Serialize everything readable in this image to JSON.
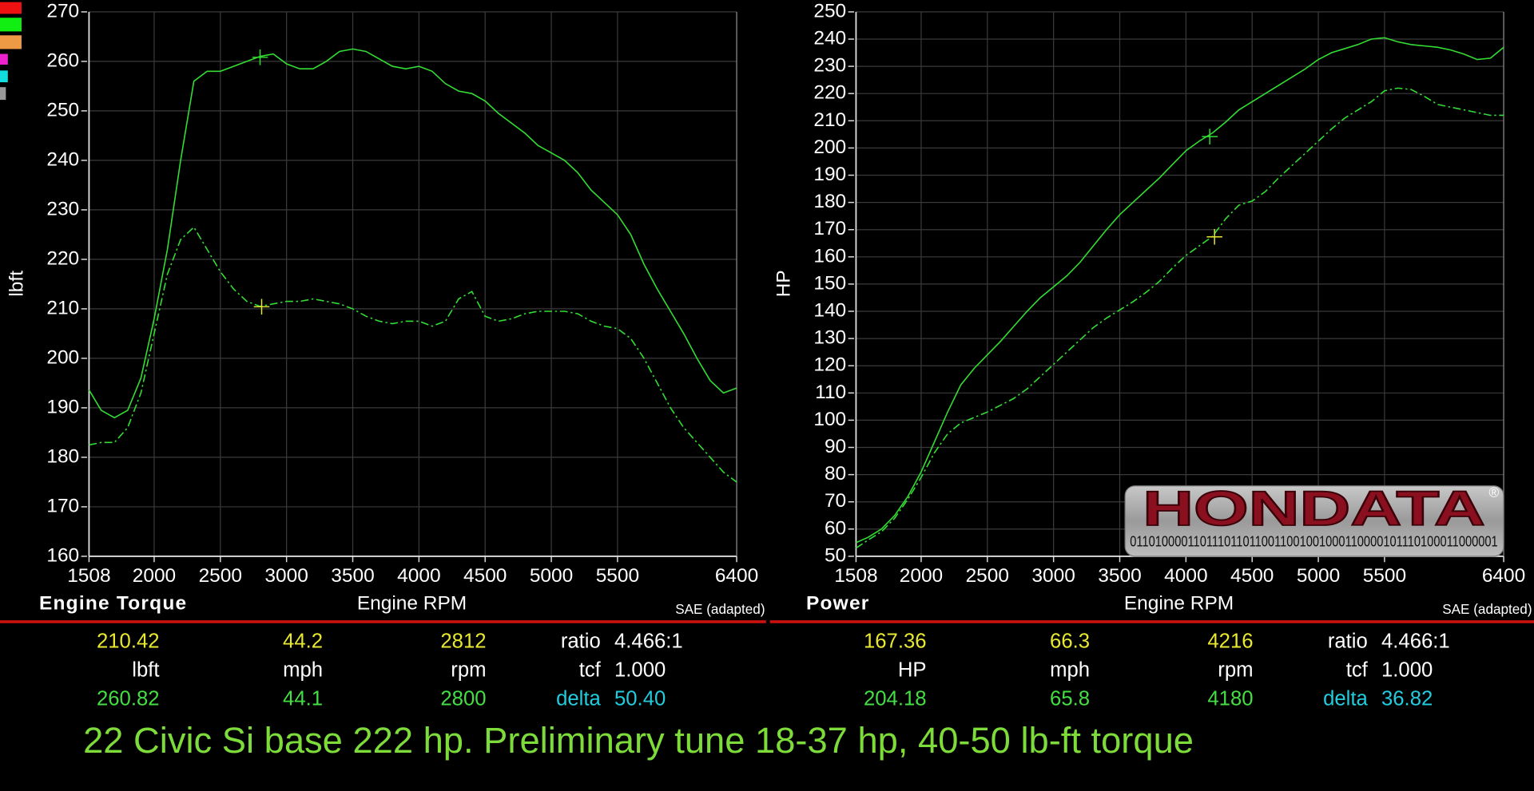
{
  "chart_data": [
    {
      "type": "line",
      "title": "Engine Torque",
      "xlabel": "Engine RPM",
      "ylabel": "lbft",
      "note": "SAE (adapted)",
      "xlim": [
        1508,
        6400
      ],
      "xticks": [
        1508,
        2000,
        2500,
        3000,
        3500,
        4000,
        4500,
        5000,
        5500,
        6400
      ],
      "ylim": [
        160,
        270
      ],
      "yticks": [
        160,
        170,
        180,
        190,
        200,
        210,
        220,
        230,
        240,
        250,
        260,
        270
      ],
      "grid": true,
      "x": [
        1508,
        1600,
        1700,
        1800,
        1900,
        2000,
        2100,
        2200,
        2300,
        2400,
        2500,
        2600,
        2700,
        2800,
        2900,
        3000,
        3100,
        3200,
        3300,
        3400,
        3500,
        3600,
        3700,
        3800,
        3900,
        4000,
        4100,
        4200,
        4300,
        4400,
        4500,
        4600,
        4700,
        4800,
        4900,
        5000,
        5100,
        5200,
        5300,
        5400,
        5500,
        5600,
        5700,
        5800,
        5900,
        6000,
        6100,
        6200,
        6300,
        6400
      ],
      "series": [
        {
          "color": "#33dd33",
          "dash": false,
          "values": [
            193.6,
            189.5,
            188,
            189.5,
            196,
            208,
            222,
            240,
            256,
            258,
            258,
            259,
            260,
            261,
            261.5,
            259.5,
            258.5,
            258.5,
            260,
            262,
            262.5,
            262,
            260.5,
            259,
            258.5,
            259,
            258,
            255.5,
            254,
            253.5,
            252,
            249.5,
            247.5,
            245.5,
            243,
            241.5,
            240,
            237.5,
            234,
            231.5,
            229,
            225,
            219,
            214,
            209.5,
            205,
            200,
            195.5,
            193,
            194
          ]
        },
        {
          "color": "#33dd33",
          "dash": true,
          "values": [
            182.5,
            183,
            183,
            186,
            193,
            205,
            217,
            224,
            226.5,
            222,
            217.5,
            214,
            211.5,
            210.5,
            211,
            211.5,
            211.5,
            212,
            211.5,
            211,
            210,
            208.5,
            207.5,
            207,
            207.5,
            207.5,
            206.5,
            207.5,
            212,
            213.5,
            208.5,
            207.5,
            208,
            209,
            209.5,
            209.5,
            209.5,
            209,
            207.5,
            206.5,
            206,
            204,
            200,
            195,
            190,
            186,
            183,
            180,
            177,
            175
          ]
        }
      ],
      "cursors": [
        {
          "x": 2800,
          "y": 260.82,
          "color": "#33dd33"
        },
        {
          "x": 2812,
          "y": 210.42,
          "color": "#e8e830"
        }
      ]
    },
    {
      "type": "line",
      "title": "Power",
      "xlabel": "Engine RPM",
      "ylabel": "HP",
      "note": "SAE (adapted)",
      "xlim": [
        1508,
        6400
      ],
      "xticks": [
        1508,
        2000,
        2500,
        3000,
        3500,
        4000,
        4500,
        5000,
        5500,
        6400
      ],
      "ylim": [
        50,
        250
      ],
      "yticks": [
        50,
        60,
        70,
        80,
        90,
        100,
        110,
        120,
        130,
        140,
        150,
        160,
        170,
        180,
        190,
        200,
        210,
        220,
        230,
        240,
        250
      ],
      "grid": true,
      "x": [
        1508,
        1600,
        1700,
        1800,
        1900,
        2000,
        2100,
        2200,
        2300,
        2400,
        2500,
        2600,
        2700,
        2800,
        2900,
        3000,
        3100,
        3200,
        3300,
        3400,
        3500,
        3600,
        3700,
        3800,
        3900,
        4000,
        4100,
        4200,
        4300,
        4400,
        4500,
        4600,
        4700,
        4800,
        4900,
        5000,
        5100,
        5200,
        5300,
        5400,
        5500,
        5600,
        5700,
        5800,
        5900,
        6000,
        6100,
        6200,
        6300,
        6400
      ],
      "series": [
        {
          "color": "#33dd33",
          "dash": false,
          "values": [
            55,
            57,
            60,
            65,
            72,
            81,
            92,
            103,
            113,
            119,
            124,
            129,
            134.5,
            140,
            145,
            149,
            153,
            158,
            164,
            170,
            175.5,
            180,
            184.5,
            189,
            194,
            199,
            202.5,
            205.5,
            209.5,
            214,
            217,
            220,
            223,
            226,
            229,
            232.5,
            235,
            236.5,
            238,
            240,
            240.5,
            239,
            238,
            237.5,
            237,
            236,
            234.5,
            232.5,
            233,
            237
          ]
        },
        {
          "color": "#33dd33",
          "dash": true,
          "values": [
            53,
            56,
            59,
            64,
            71,
            79,
            88,
            95,
            99,
            101,
            103,
            105.5,
            108,
            111.5,
            116,
            120.5,
            125,
            129.5,
            134,
            137.5,
            140.5,
            143.5,
            147,
            151,
            156,
            160.5,
            164,
            167.5,
            174,
            179,
            180.5,
            184,
            189,
            193.5,
            198,
            202.5,
            207,
            211,
            214,
            217,
            221,
            222,
            221.5,
            219,
            216,
            215,
            214,
            213,
            212,
            212
          ]
        }
      ],
      "cursors": [
        {
          "x": 4180,
          "y": 204.18,
          "color": "#33dd33"
        },
        {
          "x": 4216,
          "y": 167.36,
          "color": "#e8e830"
        }
      ]
    }
  ],
  "legend_colors": [
    "#ee1111",
    "#11ee11",
    "#ee9944",
    "#ee22cc",
    "#11dddd",
    "#999999"
  ],
  "readouts": [
    {
      "rows": [
        [
          "210.42",
          "44.2",
          "2812",
          "ratio",
          "4.466:1"
        ],
        [
          "lbft",
          "mph",
          "rpm",
          "tcf",
          "1.000"
        ],
        [
          "260.82",
          "44.1",
          "2800",
          "delta",
          "50.40"
        ]
      ]
    },
    {
      "rows": [
        [
          "167.36",
          "66.3",
          "4216",
          "ratio",
          "4.466:1"
        ],
        [
          "HP",
          "mph",
          "rpm",
          "tcf",
          "1.000"
        ],
        [
          "204.18",
          "65.8",
          "4180",
          "delta",
          "36.82"
        ]
      ]
    }
  ],
  "logo": {
    "name": "HONDATA",
    "mark": "®",
    "code": "0110100001101110110110011001001000110000101110100011000001"
  },
  "caption": "22 Civic Si base 222 hp. Preliminary tune 18-37 hp, 40-50 lb-ft torque"
}
